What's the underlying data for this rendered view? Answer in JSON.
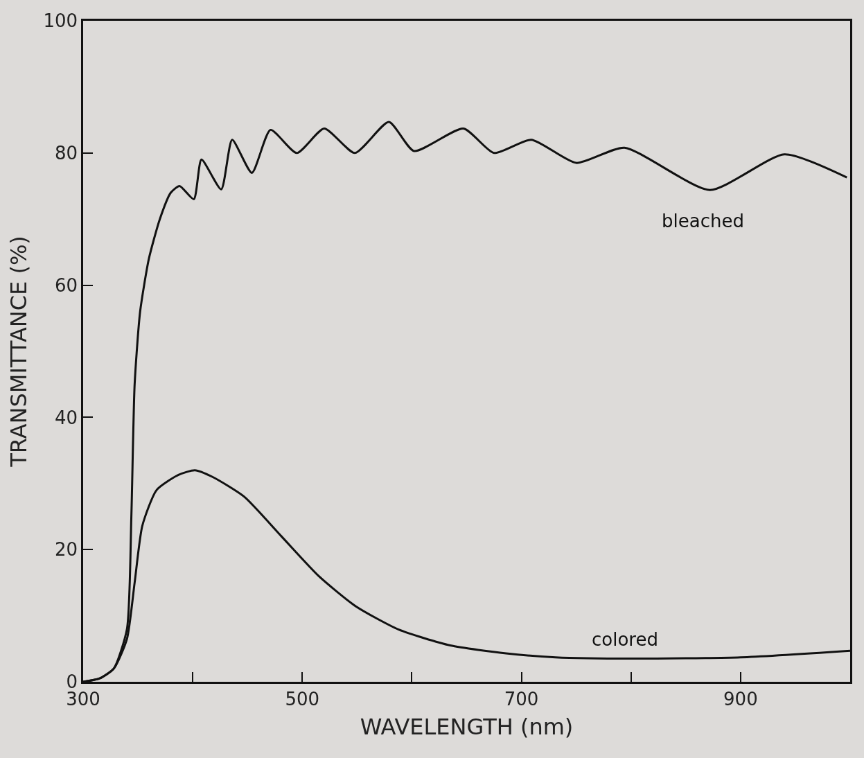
{
  "chart_data": {
    "type": "line",
    "xlabel": "WAVELENGTH (nm)",
    "ylabel": "TRANSMITTANCE (%)",
    "xlim": [
      300,
      1000
    ],
    "ylim": [
      0,
      100
    ],
    "xticks": [
      300,
      {
        "value": 400,
        "label": null
      },
      500,
      {
        "value": 600,
        "label": null
      },
      700,
      {
        "value": 800,
        "label": null
      },
      900
    ],
    "yticks": [
      0,
      20,
      40,
      60,
      80,
      100
    ],
    "grid": false,
    "legend": false,
    "marker": "none",
    "line_style": "solid",
    "series": [
      {
        "name": "bleached",
        "color": "#111111",
        "x": [
          300,
          315,
          328,
          340,
          344,
          347,
          352,
          360,
          370,
          380,
          388,
          401,
          408,
          426,
          436,
          454,
          471,
          495,
          520,
          548,
          579,
          602,
          647,
          675,
          709,
          750,
          794,
          872,
          940,
          997
        ],
        "values": [
          0,
          0.5,
          2,
          8,
          25,
          45,
          56,
          64,
          70,
          74,
          75,
          73,
          79,
          74.5,
          82,
          77,
          83.5,
          80,
          83.7,
          80,
          84.7,
          80.3,
          83.7,
          80,
          82,
          78.5,
          80.8,
          74.4,
          79.8,
          76.3
        ]
      },
      {
        "name": "colored",
        "color": "#111111",
        "x": [
          300,
          315,
          328,
          340,
          347,
          354,
          367,
          387,
          402,
          418,
          447,
          481,
          515,
          549,
          588,
          635,
          686,
          731,
          801,
          900,
          1000
        ],
        "values": [
          0,
          0.5,
          2,
          6.5,
          15,
          23.6,
          29,
          31.3,
          32,
          31,
          28,
          22,
          16,
          11.4,
          7.9,
          5.5,
          4.3,
          3.7,
          3.5,
          3.7,
          4.7
        ]
      }
    ]
  }
}
